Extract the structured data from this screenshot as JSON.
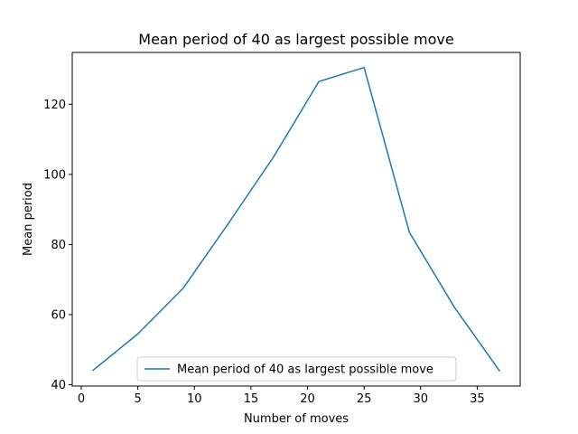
{
  "chart_data": {
    "type": "line",
    "title": "Mean period of 40 as largest possible move",
    "xlabel": "Number of moves",
    "ylabel": "Mean period",
    "xlim": [
      -0.8,
      38.8
    ],
    "ylim": [
      39.6,
      134.8
    ],
    "xticks": [
      0,
      5,
      10,
      15,
      20,
      25,
      30,
      35
    ],
    "yticks": [
      40,
      60,
      80,
      100,
      120
    ],
    "grid": false,
    "legend_position": "lower center",
    "series": [
      {
        "name": "Mean period of 40 as largest possible move",
        "color": "#1f77b4",
        "x": [
          1,
          5,
          9,
          13,
          17,
          21,
          25,
          29,
          33,
          37
        ],
        "y": [
          44.0,
          54.5,
          67.5,
          86.0,
          105.0,
          126.5,
          130.5,
          83.5,
          62.0,
          43.8
        ]
      }
    ]
  }
}
